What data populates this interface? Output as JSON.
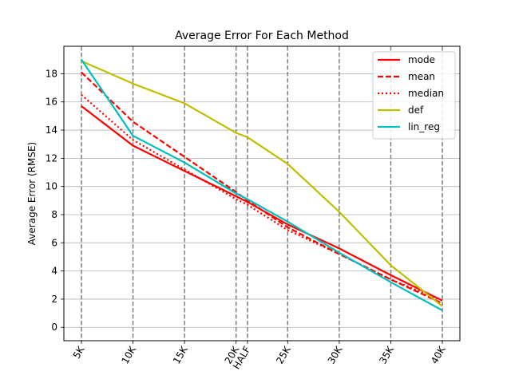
{
  "chart_data": {
    "type": "line",
    "title": "Average Error For Each Method",
    "xlabel": "",
    "ylabel": "Average Error (RMSE)",
    "x_tick_labels": [
      "5K",
      "10K",
      "15K",
      "20K",
      "HALF",
      "25K",
      "30K",
      "35K",
      "40K"
    ],
    "x": [
      5,
      10,
      15,
      20,
      21.1,
      25,
      30,
      35,
      40
    ],
    "xlim": [
      3.3,
      41.7
    ],
    "ylim": [
      -0.95,
      19.95
    ],
    "y_ticks": [
      0,
      2,
      4,
      6,
      8,
      10,
      12,
      14,
      16,
      18
    ],
    "grid": "horizontal",
    "vertical_markers": "dashed gray at each x tick",
    "legend_position": "top-right",
    "series": [
      {
        "name": "mode",
        "color": "#ff0000",
        "style": "solid",
        "values": [
          15.7,
          12.9,
          11.1,
          9.3,
          8.9,
          7.3,
          5.6,
          3.7,
          1.9
        ]
      },
      {
        "name": "mean",
        "color": "#ff0000",
        "style": "dashed",
        "values": [
          18.1,
          14.6,
          12.1,
          9.6,
          9.0,
          7.1,
          5.2,
          3.4,
          1.7
        ]
      },
      {
        "name": "median",
        "color": "#ff0000",
        "style": "dotted",
        "values": [
          16.5,
          13.3,
          11.2,
          9.1,
          8.7,
          6.9,
          5.2,
          3.4,
          1.9
        ]
      },
      {
        "name": "def",
        "color": "#bfbf00",
        "style": "solid",
        "values": [
          18.9,
          17.3,
          15.9,
          13.8,
          13.5,
          11.6,
          8.2,
          4.4,
          1.5
        ]
      },
      {
        "name": "lin_reg",
        "color": "#00bfbf",
        "style": "solid",
        "values": [
          19.0,
          13.6,
          11.7,
          9.5,
          9.1,
          7.5,
          5.3,
          3.2,
          1.2
        ]
      }
    ]
  }
}
